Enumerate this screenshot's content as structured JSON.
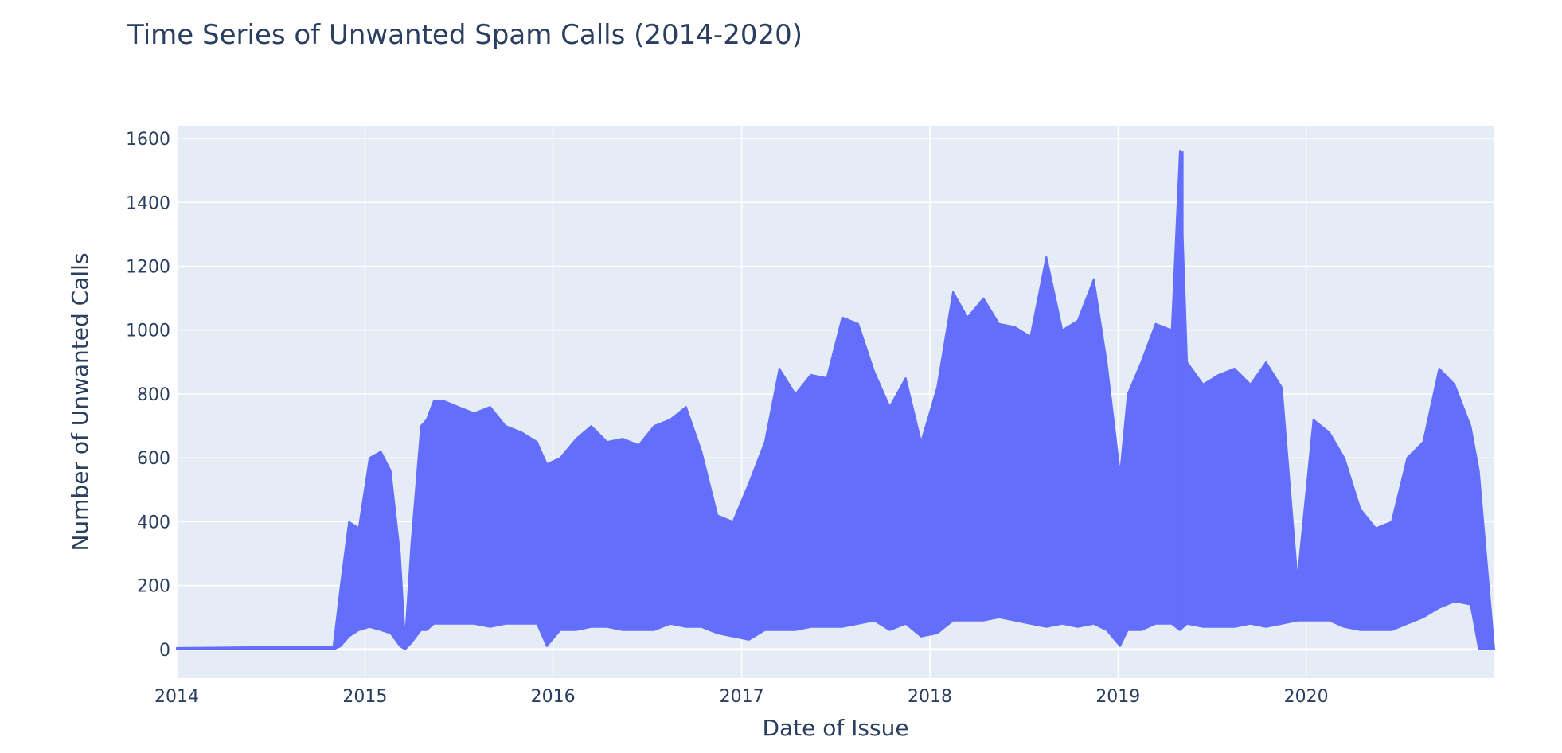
{
  "chart_data": {
    "type": "line",
    "title": "Time Series of Unwanted Spam Calls (2014-2020)",
    "xlabel": "Date of Issue",
    "ylabel": "Number of Unwanted Calls",
    "x_tick_labels": [
      "2014",
      "2015",
      "2016",
      "2017",
      "2018",
      "2019",
      "2020"
    ],
    "y_tick_labels": [
      "0",
      "200",
      "400",
      "600",
      "800",
      "1000",
      "1200",
      "1400",
      "1600"
    ],
    "x_range": [
      "2014-01-01",
      "2020-12-31"
    ],
    "y_range": [
      -90,
      1640
    ],
    "grid": true,
    "legend": "none",
    "line_color": "#636efa",
    "plot_background": "#e5ecf6",
    "series": [
      {
        "x_dates": [
          "2014-01-01",
          "2014-11-01",
          "2014-11-15",
          "2014-12-01",
          "2014-12-20",
          "2015-01-10",
          "2015-02-01",
          "2015-02-20",
          "2015-03-10",
          "2015-03-20",
          "2015-04-01",
          "2015-04-20",
          "2015-05-01",
          "2015-05-15",
          "2015-06-01",
          "2015-07-01",
          "2015-08-01",
          "2015-09-01",
          "2015-10-01",
          "2015-11-01",
          "2015-12-01",
          "2015-12-20",
          "2016-01-15",
          "2016-02-15",
          "2016-03-15",
          "2016-04-15",
          "2016-05-15",
          "2016-06-15",
          "2016-07-15",
          "2016-08-15",
          "2016-09-15",
          "2016-10-15",
          "2016-11-15",
          "2016-12-15",
          "2017-01-15",
          "2017-02-15",
          "2017-03-15",
          "2017-04-15",
          "2017-05-15",
          "2017-06-15",
          "2017-07-15",
          "2017-08-15",
          "2017-09-15",
          "2017-10-15",
          "2017-11-15",
          "2017-12-15",
          "2018-01-15",
          "2018-02-15",
          "2018-03-15",
          "2018-04-15",
          "2018-05-15",
          "2018-06-15",
          "2018-07-15",
          "2018-08-15",
          "2018-09-15",
          "2018-10-15",
          "2018-11-15",
          "2018-12-10",
          "2019-01-05",
          "2019-01-20",
          "2019-02-15",
          "2019-03-15",
          "2019-04-15",
          "2019-05-01",
          "2019-05-15",
          "2019-06-15",
          "2019-07-15",
          "2019-08-15",
          "2019-09-15",
          "2019-10-15",
          "2019-11-15",
          "2019-12-15",
          "2020-01-15",
          "2020-02-15",
          "2020-03-15",
          "2020-04-15",
          "2020-05-15",
          "2020-06-15",
          "2020-07-15",
          "2020-08-15",
          "2020-09-15",
          "2020-10-15",
          "2020-11-15",
          "2020-12-01",
          "2020-12-31"
        ],
        "low": [
          0,
          0,
          10,
          40,
          60,
          70,
          60,
          50,
          10,
          0,
          20,
          60,
          60,
          80,
          80,
          80,
          80,
          70,
          80,
          80,
          80,
          10,
          60,
          60,
          70,
          70,
          60,
          60,
          60,
          80,
          70,
          70,
          50,
          40,
          30,
          60,
          60,
          60,
          70,
          70,
          70,
          80,
          90,
          60,
          80,
          40,
          50,
          90,
          90,
          90,
          100,
          90,
          80,
          70,
          80,
          70,
          80,
          60,
          10,
          60,
          60,
          80,
          80,
          60,
          80,
          70,
          70,
          70,
          80,
          70,
          80,
          90,
          90,
          90,
          70,
          60,
          60,
          60,
          80,
          100,
          130,
          150,
          140,
          0,
          0
        ],
        "high": [
          5,
          10,
          200,
          400,
          380,
          600,
          620,
          560,
          300,
          30,
          330,
          700,
          720,
          780,
          780,
          760,
          740,
          760,
          700,
          680,
          650,
          580,
          600,
          660,
          700,
          650,
          660,
          640,
          700,
          720,
          760,
          620,
          420,
          400,
          520,
          650,
          880,
          800,
          860,
          850,
          1040,
          1020,
          870,
          760,
          850,
          650,
          820,
          1120,
          1040,
          1100,
          1020,
          1010,
          980,
          1230,
          1000,
          1030,
          1160,
          900,
          550,
          800,
          900,
          1020,
          1000,
          1560,
          900,
          830,
          860,
          880,
          830,
          900,
          820,
          220,
          720,
          680,
          600,
          440,
          380,
          400,
          600,
          650,
          880,
          830,
          700,
          560,
          0
        ],
        "peak_dates": [
          "2019-05-05"
        ],
        "peak_values": [
          1560
        ]
      }
    ]
  }
}
